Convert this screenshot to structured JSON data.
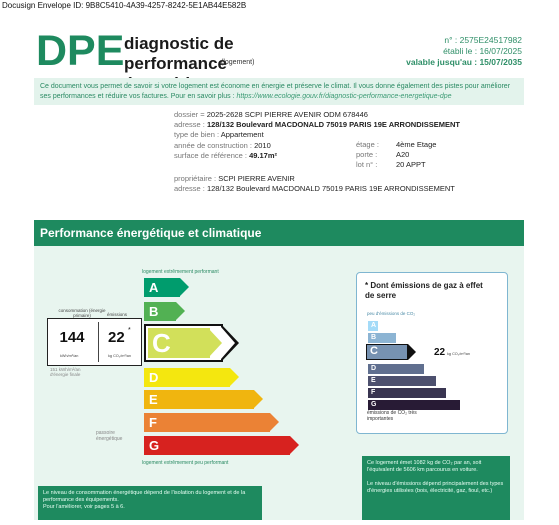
{
  "envelope": "Docusign Envelope ID: 9B8C5410-4A39-4257-8242-5E1AB44E582B",
  "header": {
    "logo": "DPE",
    "title_line1": "diagnostic de performance",
    "title_line2": "énergétique",
    "subtitle": "(logement)",
    "number": "n° : 2575E24517982",
    "established": "établi le : 16/07/2025",
    "valid_until": "valable jusqu'au : 15/07/2035"
  },
  "intro": {
    "text": "Ce document vous permet de savoir si votre logement est économe en énergie et préserve le climat. Il vous donne également des pistes pour améliorer ses performances et réduire vos factures. Pour en savoir plus :",
    "link": "https://www.ecologie.gouv.fr/diagnostic-performance-energetique-dpe"
  },
  "property": {
    "dossier_label": "dossier =",
    "dossier_value": "2025-2628 SCPI PIERRE AVENIR ODM 678446",
    "address_label": "adresse :",
    "address_value": "128/132 Boulevard MACDONALD 75019 PARIS 19E ARRONDISSEMENT",
    "type_label": "type de bien :",
    "type_value": "Appartement",
    "year_label": "année de construction :",
    "year_value": "2010",
    "surface_label": "surface de référence :",
    "surface_value": "49.17m²",
    "floor_label": "étage :",
    "floor_value": "4ème Etage",
    "door_label": "porte :",
    "door_value": "A20",
    "lot_label": "lot n° :",
    "lot_value": "20 APPT",
    "owner_label": "propriétaire :",
    "owner_value": "SCPI PIERRE AVENIR",
    "owner_address_label": "adresse :",
    "owner_address_value": "128/132 Boulevard MACDONALD 75019 PARIS 19E ARRONDISSEMENT"
  },
  "performance": {
    "header": "Performance énergétique et climatique",
    "scale_top": "logement extrêmement performant",
    "scale_bottom": "logement extrêmement peu performant",
    "passoire": "passoire énergétique",
    "consumption_label": "consommation (énergie primaire)",
    "emissions_label": "émissions",
    "consumption_value": "144",
    "emissions_value": "22",
    "emissions_star": "*",
    "consumption_unit": "kWh/m²/an",
    "emissions_unit": "kg CO₂/m²/an",
    "final_energy": "151 kWh/m²/an d'énergie finale",
    "current_class": "C",
    "classes": [
      {
        "label": "A",
        "color": "#009c6d"
      },
      {
        "label": "B",
        "color": "#52b153"
      },
      {
        "label": "C",
        "color": "#a5cc74"
      },
      {
        "label": "D",
        "color": "#f4e70f"
      },
      {
        "label": "E",
        "color": "#f0b50f"
      },
      {
        "label": "F",
        "color": "#eb8235"
      },
      {
        "label": "G",
        "color": "#d7221f"
      }
    ]
  },
  "ges": {
    "title": "* Dont émissions de gaz à effet de serre",
    "top": "peu d'émissions de CO₂",
    "bottom": "émissions de CO₂ très importantes",
    "current_class": "C",
    "value": "22",
    "unit": "kg CO₂/m²/an",
    "classes": [
      {
        "label": "A",
        "color": "#a4dbf8"
      },
      {
        "label": "B",
        "color": "#8cb4d3"
      },
      {
        "label": "C",
        "color": "#7792b1"
      },
      {
        "label": "D",
        "color": "#606f8f"
      },
      {
        "label": "E",
        "color": "#4d506e"
      },
      {
        "label": "F",
        "color": "#393551"
      },
      {
        "label": "G",
        "color": "#281b35"
      }
    ]
  },
  "notes": {
    "left_line1": "Le niveau de consommation énergétique dépend de l'isolation du logement et de la performance des équipements.",
    "left_line2": "Pour l'améliorer, voir pages 5 à 6.",
    "right_p1": "Ce logement émet 1082 kg de CO₂ par an, soit l'équivalent de 5606 km parcourus en voiture.",
    "right_p2": "Le niveau d'émissions dépend principalement des types d'énergies utilisées (bois, électricité, gaz, fioul, etc.)"
  }
}
